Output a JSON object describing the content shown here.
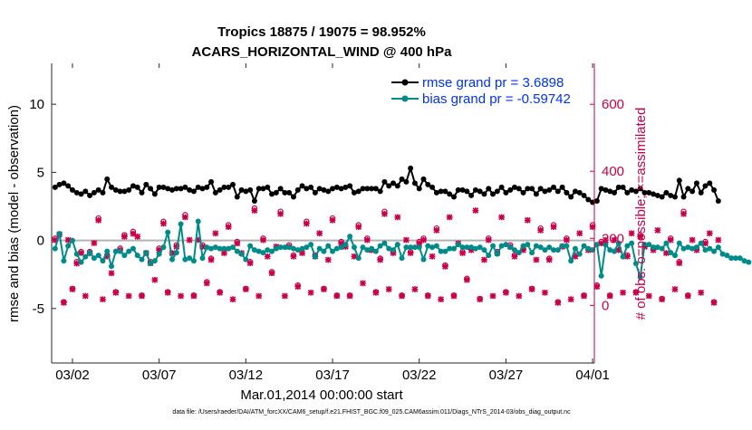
{
  "chart_data": {
    "type": "line",
    "title_line1": "Tropics 18875 / 19075 = 98.952%",
    "title_line2": "ACARS_HORIZONTAL_WIND @ 400 hPa",
    "ylabel": "rmse and bias (model - observation)",
    "y2label": "# of obs: o=possible; ×=assimilated",
    "xlabel": "Mar.01,2014 00:00:00 start",
    "footnote": "data file: /Users/raeder/DAI/ATM_forcXX/CAM6_setup/f.e21.FHIST_BGC.f09_025.CAM6assim.011/Diags_NTrS_2014-03/obs_diag_output.nc",
    "xlim": [
      0.8,
      32.1
    ],
    "ylim": [
      -9,
      13
    ],
    "y2lim": [
      -172,
      722
    ],
    "x_tick_values": [
      2,
      7,
      12,
      17,
      22,
      27,
      32
    ],
    "x_tick_labels": [
      "03/02",
      "03/07",
      "03/12",
      "03/17",
      "03/22",
      "03/27",
      "04/01"
    ],
    "y_tick_values": [
      -5,
      0,
      5,
      10
    ],
    "y_tick_labels": [
      "-5",
      "0",
      "5",
      "10"
    ],
    "y2_tick_values": [
      0,
      200,
      400,
      600
    ],
    "y2_tick_labels": [
      "0",
      "200",
      "400",
      "600"
    ],
    "zero_line": 0,
    "legend": [
      {
        "name": "rmse grand pr = 3.6898",
        "color": "#000000"
      },
      {
        "name": "bias grand pr = -0.59742",
        "color": "#008b8b"
      }
    ],
    "x_start": 1.0,
    "x_step": 0.25,
    "series": [
      {
        "name": "rmse",
        "color": "#000000",
        "values": [
          3.9,
          4.1,
          4.2,
          4.0,
          3.7,
          3.5,
          3.4,
          3.6,
          3.3,
          3.5,
          3.7,
          3.5,
          4.5,
          3.9,
          3.7,
          3.6,
          3.6,
          3.7,
          4.0,
          3.9,
          3.5,
          4.1,
          3.8,
          3.4,
          3.9,
          3.9,
          3.8,
          3.7,
          3.8,
          3.8,
          3.9,
          3.7,
          3.6,
          3.9,
          3.8,
          3.9,
          4.3,
          3.5,
          3.7,
          3.9,
          3.9,
          4.1,
          3.2,
          3.7,
          3.6,
          3.7,
          2.9,
          3.8,
          3.8,
          3.9,
          3.4,
          3.5,
          3.8,
          3.5,
          3.5,
          3.2,
          3.7,
          4.0,
          3.8,
          3.9,
          3.5,
          3.8,
          3.7,
          3.6,
          3.8,
          3.9,
          3.8,
          3.9,
          4.0,
          3.5,
          3.6,
          3.8,
          3.8,
          3.8,
          3.8,
          3.6,
          4.3,
          4.0,
          4.2,
          4.0,
          4.5,
          4.3,
          5.3,
          4.2,
          3.8,
          4.5,
          4.1,
          3.9,
          3.5,
          3.6,
          3.6,
          3.4,
          3.2,
          3.7,
          3.7,
          3.6,
          3.3,
          3.7,
          3.6,
          3.4,
          3.8,
          3.4,
          3.6,
          3.9,
          3.5,
          3.7,
          3.9,
          3.8,
          3.5,
          3.8,
          3.8,
          3.4,
          3.8,
          3.6,
          3.7,
          3.9,
          3.6,
          3.9,
          3.5,
          3.2,
          3.6,
          3.5,
          3.3,
          3.0,
          2.8,
          2.9,
          3.8,
          3.7,
          3.6,
          3.5,
          3.9,
          3.9,
          3.5,
          3.7,
          3.6,
          3.8,
          3.5,
          3.5,
          3.4,
          3.3,
          3.2,
          3.5,
          3.3,
          3.2,
          4.4,
          3.2,
          3.8,
          3.6,
          4.2,
          3.5,
          4.0,
          4.2,
          3.7,
          2.9
        ]
      },
      {
        "name": "bias",
        "color": "#008b8b",
        "values": [
          -0.6,
          0.5,
          -1.5,
          -0.4,
          0.0,
          -1.0,
          -1.6,
          -1.2,
          -0.9,
          -1.3,
          -1.1,
          -1.5,
          -0.8,
          -1.9,
          -0.8,
          -0.8,
          -1.1,
          -0.8,
          -0.6,
          -1.1,
          -1.4,
          -0.9,
          -1.7,
          -1.5,
          -1.0,
          -0.5,
          0.6,
          -1.4,
          -0.9,
          1.2,
          -1.4,
          -1.3,
          -1.5,
          1.4,
          -1.3,
          -0.5,
          -0.6,
          -0.5,
          -0.6,
          -0.6,
          -0.6,
          -0.5,
          -0.8,
          -1.0,
          -1.4,
          -0.4,
          -0.7,
          -0.8,
          -0.9,
          -0.7,
          -0.8,
          -0.6,
          -0.5,
          -0.5,
          -0.5,
          -0.6,
          -0.7,
          -0.6,
          -0.5,
          -0.3,
          -1.2,
          -0.6,
          -0.8,
          -0.4,
          -0.8,
          -0.6,
          -0.5,
          -0.3,
          0.3,
          -0.5,
          -1.3,
          -0.5,
          -0.7,
          -0.6,
          -0.8,
          -0.4,
          -0.2,
          -0.6,
          -0.7,
          -0.3,
          -1.3,
          -0.5,
          -0.5,
          -0.5,
          -0.5,
          -1.4,
          -0.4,
          -0.5,
          -0.4,
          -0.8,
          -0.8,
          -0.6,
          -0.6,
          -0.3,
          -0.5,
          -0.5,
          -0.5,
          -0.6,
          -0.5,
          -0.7,
          -1.1,
          -0.4,
          -1.0,
          -0.4,
          -0.3,
          -0.5,
          -0.7,
          -0.9,
          -0.4,
          -0.3,
          -0.9,
          -0.4,
          -0.5,
          -0.7,
          -0.5,
          -0.7,
          -0.7,
          -0.4,
          -0.4,
          -1.5,
          -0.6,
          -1.0,
          -0.4,
          -0.6,
          -0.7,
          -0.3,
          -2.6,
          -0.3,
          -0.7,
          -0.8,
          -0.2,
          -1.2,
          -0.4,
          -0.2,
          -1.7,
          -2.7,
          -0.3,
          -0.3,
          -0.5,
          -0.5,
          -0.6,
          -0.2,
          -0.9,
          -1.1,
          -0.2,
          -0.6,
          -0.5,
          -0.6,
          -0.5,
          -0.2,
          -0.7,
          -0.6,
          -0.8,
          -0.5,
          -1.0,
          -1.1,
          -1.3,
          -1.3,
          -1.3,
          -1.5,
          -1.6
        ]
      },
      {
        "name": "obs possible",
        "color": "#c8004a",
        "values": [
          200,
          220,
          10,
          200,
          50,
          130,
          160,
          30,
          160,
          190,
          260,
          20,
          150,
          100,
          40,
          170,
          210,
          30,
          220,
          210,
          30,
          160,
          130,
          80,
          170,
          250,
          40,
          160,
          180,
          30,
          270,
          200,
          30,
          200,
          180,
          70,
          140,
          220,
          40,
          160,
          240,
          20,
          190,
          160,
          50,
          130,
          290,
          30,
          200,
          150,
          100,
          180,
          280,
          30,
          180,
          150,
          60,
          160,
          250,
          40,
          150,
          220,
          50,
          140,
          260,
          30,
          190,
          180,
          30,
          150,
          240,
          70,
          200,
          170,
          40,
          140,
          280,
          50,
          160,
          270,
          30,
          200,
          160,
          50,
          190,
          200,
          30,
          150,
          230,
          20,
          120,
          270,
          30,
          190,
          160,
          80,
          170,
          290,
          20,
          140,
          200,
          30,
          160,
          270,
          40,
          180,
          150,
          30,
          170,
          260,
          50,
          140,
          230,
          40,
          140,
          240,
          10,
          180,
          200,
          20,
          150,
          220,
          30,
          170,
          240,
          60,
          190,
          200,
          30,
          200,
          170,
          40,
          150,
          220,
          40,
          210,
          180,
          30,
          170,
          230,
          20,
          160,
          200,
          50,
          130,
          280,
          30,
          200,
          170,
          40,
          190,
          220,
          10,
          200
        ]
      },
      {
        "name": "obs assimilated",
        "color": "#c8004a",
        "values": [
          195,
          212,
          8,
          195,
          48,
          125,
          156,
          28,
          155,
          186,
          254,
          18,
          146,
          96,
          38,
          165,
          205,
          28,
          214,
          205,
          28,
          156,
          126,
          76,
          165,
          244,
          38,
          156,
          175,
          28,
          263,
          195,
          28,
          195,
          175,
          66,
          136,
          215,
          38,
          156,
          234,
          18,
          185,
          156,
          48,
          126,
          283,
          28,
          195,
          146,
          96,
          175,
          273,
          28,
          175,
          146,
          56,
          156,
          244,
          38,
          146,
          215,
          48,
          136,
          254,
          28,
          185,
          175,
          28,
          146,
          234,
          66,
          195,
          165,
          38,
          136,
          273,
          48,
          156,
          263,
          28,
          195,
          156,
          48,
          185,
          195,
          28,
          146,
          224,
          18,
          116,
          263,
          28,
          185,
          156,
          76,
          165,
          283,
          18,
          136,
          195,
          28,
          156,
          263,
          38,
          175,
          146,
          28,
          165,
          254,
          48,
          136,
          224,
          38,
          136,
          234,
          8,
          175,
          195,
          18,
          146,
          215,
          28,
          165,
          234,
          56,
          185,
          195,
          28,
          195,
          165,
          38,
          146,
          215,
          38,
          205,
          175,
          28,
          165,
          224,
          18,
          156,
          195,
          48,
          126,
          273,
          28,
          195,
          165,
          38,
          185,
          215,
          8,
          195
        ]
      }
    ]
  }
}
